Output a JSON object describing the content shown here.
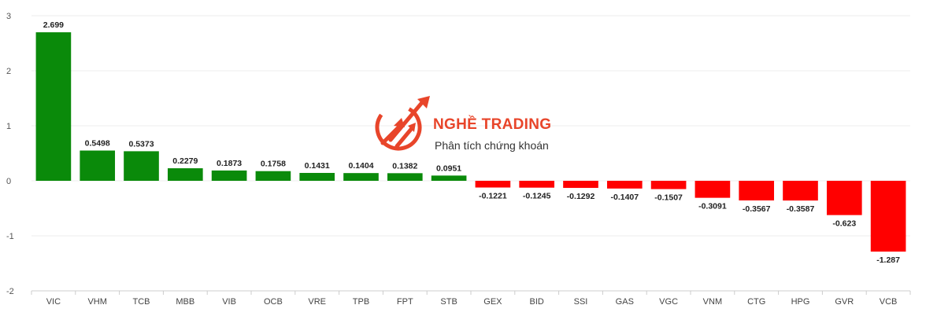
{
  "chart_data": {
    "type": "bar",
    "title": "",
    "xlabel": "",
    "ylabel": "",
    "ylim": [
      -2,
      3
    ],
    "yticks": [
      3,
      2,
      1,
      0,
      -1,
      -2
    ],
    "grid": true,
    "legend": "none",
    "colors": {
      "positive": "#0a8a0a",
      "negative": "#ff0000"
    },
    "categories": [
      "VIC",
      "VHM",
      "TCB",
      "MBB",
      "VIB",
      "OCB",
      "VRE",
      "TPB",
      "FPT",
      "STB",
      "GEX",
      "BID",
      "SSI",
      "GAS",
      "VGC",
      "VNM",
      "CTG",
      "HPG",
      "GVR",
      "VCB"
    ],
    "values": [
      2.699,
      0.5498,
      0.5373,
      0.2279,
      0.1873,
      0.1758,
      0.1431,
      0.1404,
      0.1382,
      0.0951,
      -0.1221,
      -0.1245,
      -0.1292,
      -0.1407,
      -0.1507,
      -0.3091,
      -0.3567,
      -0.3587,
      -0.623,
      -1.287
    ],
    "value_labels": [
      "2.699",
      "0.5498",
      "0.5373",
      "0.2279",
      "0.1873",
      "0.1758",
      "0.1431",
      "0.1404",
      "0.1382",
      "0.0951",
      "-0.1221",
      "-0.1245",
      "-0.1292",
      "-0.1407",
      "-0.1507",
      "-0.3091",
      "-0.3567",
      "-0.3587",
      "-0.623",
      "-1.287"
    ]
  },
  "watermark": {
    "title": "NGHỀ TRADING",
    "subtitle": "Phân tích chứng khoán",
    "color": "#e8452a",
    "icon": "trend-arrows-logo-icon"
  }
}
